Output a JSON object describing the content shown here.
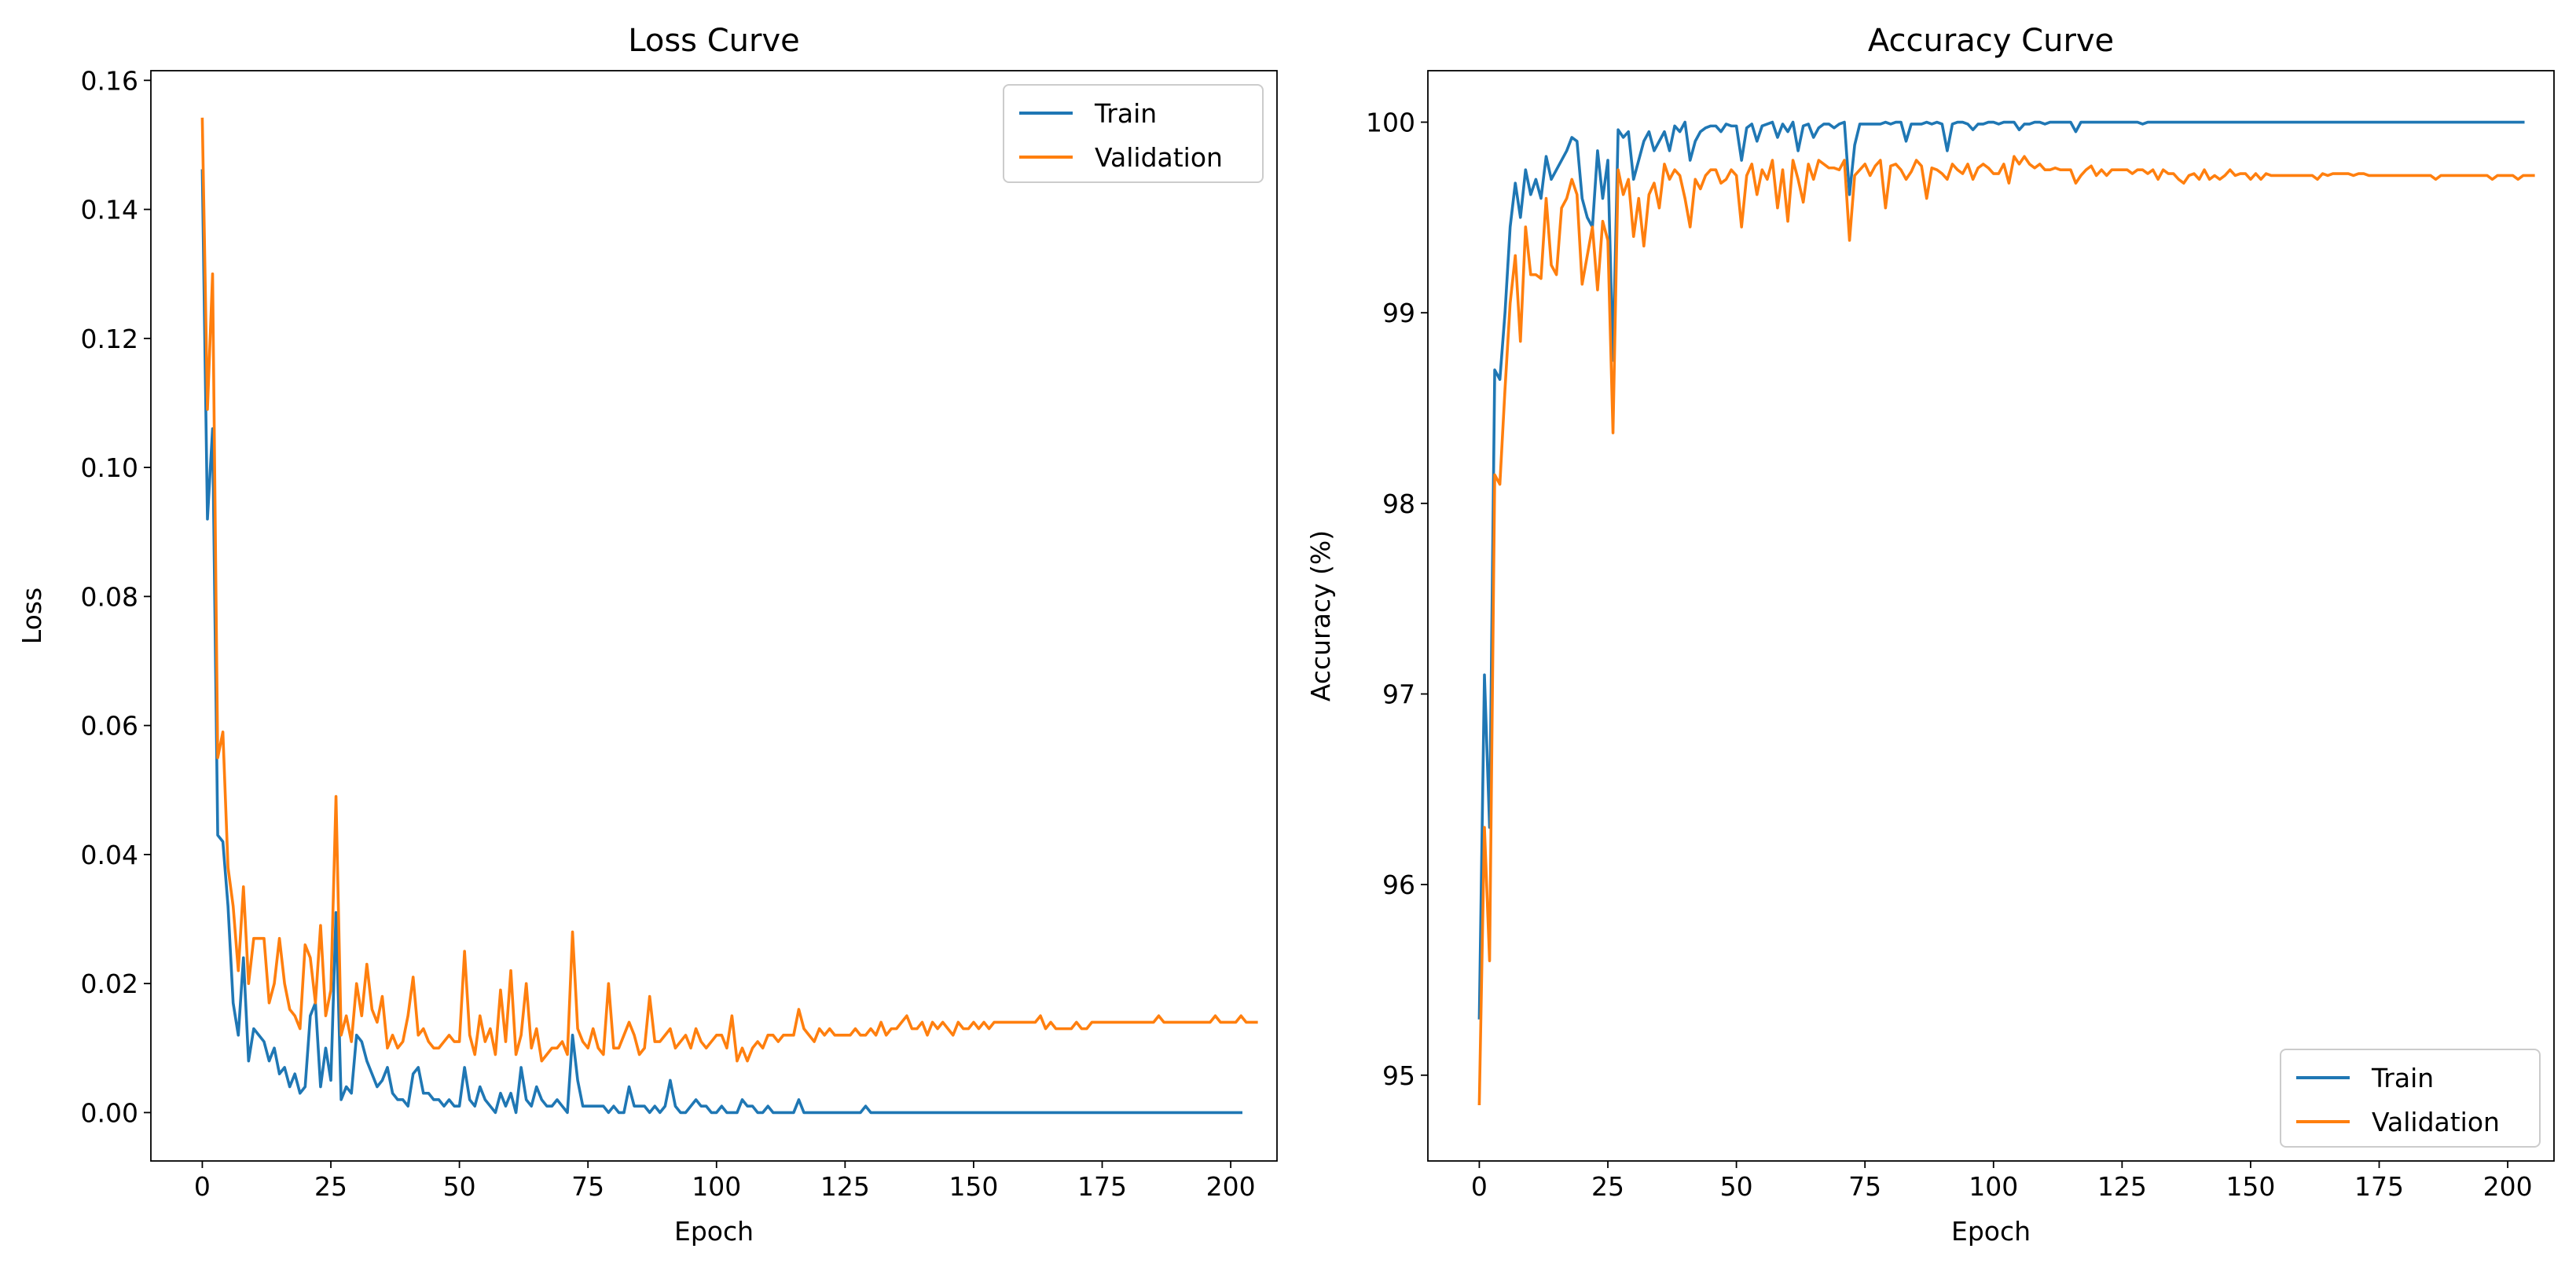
{
  "chart_data": [
    {
      "type": "line",
      "title": "Loss Curve",
      "xlabel": "Epoch",
      "ylabel": "Loss",
      "xlim": [
        -10,
        209
      ],
      "ylim": [
        -0.0075,
        0.1615
      ],
      "xticks": [
        0,
        25,
        50,
        75,
        100,
        125,
        150,
        175,
        200
      ],
      "yticks": [
        0.0,
        0.02,
        0.04,
        0.06,
        0.08,
        0.1,
        0.12,
        0.14,
        0.16
      ],
      "ytick_labels": [
        "0.00",
        "0.02",
        "0.04",
        "0.06",
        "0.08",
        "0.10",
        "0.12",
        "0.14",
        "0.16"
      ],
      "legend_position": "top-right",
      "series": [
        {
          "name": "Train",
          "color": "#1f77b4",
          "values": [
            0.146,
            0.092,
            0.106,
            0.043,
            0.042,
            0.032,
            0.017,
            0.012,
            0.024,
            0.008,
            0.013,
            0.012,
            0.011,
            0.008,
            0.01,
            0.006,
            0.007,
            0.004,
            0.006,
            0.003,
            0.004,
            0.015,
            0.017,
            0.004,
            0.01,
            0.005,
            0.031,
            0.002,
            0.004,
            0.003,
            0.012,
            0.011,
            0.008,
            0.006,
            0.004,
            0.005,
            0.007,
            0.003,
            0.002,
            0.002,
            0.001,
            0.006,
            0.007,
            0.003,
            0.003,
            0.002,
            0.002,
            0.001,
            0.002,
            0.001,
            0.001,
            0.007,
            0.002,
            0.001,
            0.004,
            0.002,
            0.001,
            0.0,
            0.003,
            0.001,
            0.003,
            0.0,
            0.007,
            0.002,
            0.001,
            0.004,
            0.002,
            0.001,
            0.001,
            0.002,
            0.001,
            0.0,
            0.012,
            0.005,
            0.001,
            0.001,
            0.001,
            0.001,
            0.001,
            0.0,
            0.001,
            0.0,
            0.0,
            0.004,
            0.001,
            0.001,
            0.001,
            0.0,
            0.001,
            0.0,
            0.001,
            0.005,
            0.001,
            0.0,
            0.0,
            0.001,
            0.002,
            0.001,
            0.001,
            0.0,
            0.0,
            0.001,
            0.0,
            0.0,
            0.0,
            0.002,
            0.001,
            0.001,
            0.0,
            0.0,
            0.001,
            0.0,
            0.0,
            0.0,
            0.0,
            0.0,
            0.002,
            0.0,
            0.0,
            0.0,
            0.0,
            0.0,
            0.0,
            0.0,
            0.0,
            0.0,
            0.0,
            0.0,
            0.0,
            0.001,
            0.0,
            0.0,
            0.0,
            0.0,
            0.0,
            0.0,
            0.0,
            0.0,
            0.0,
            0.0,
            0.0,
            0.0,
            0.0,
            0.0,
            0.0,
            0.0,
            0.0,
            0.0,
            0.0,
            0.0,
            0.0,
            0.0,
            0.0,
            0.0,
            0.0,
            0.0,
            0.0,
            0.0,
            0.0,
            0.0,
            0.0,
            0.0,
            0.0,
            0.0,
            0.0,
            0.0,
            0.0,
            0.0,
            0.0,
            0.0,
            0.0,
            0.0,
            0.0,
            0.0,
            0.0,
            0.0,
            0.0,
            0.0,
            0.0,
            0.0,
            0.0,
            0.0,
            0.0,
            0.0,
            0.0,
            0.0,
            0.0,
            0.0,
            0.0,
            0.0,
            0.0,
            0.0,
            0.0,
            0.0,
            0.0,
            0.0,
            0.0,
            0.0,
            0.0,
            0.0,
            0.0,
            0.0,
            0.0
          ]
        },
        {
          "name": "Validation",
          "color": "#ff7f0e",
          "values": [
            0.154,
            0.109,
            0.13,
            0.055,
            0.059,
            0.038,
            0.032,
            0.022,
            0.035,
            0.02,
            0.027,
            0.027,
            0.027,
            0.017,
            0.02,
            0.027,
            0.02,
            0.016,
            0.015,
            0.013,
            0.026,
            0.024,
            0.017,
            0.029,
            0.015,
            0.019,
            0.049,
            0.012,
            0.015,
            0.011,
            0.02,
            0.015,
            0.023,
            0.016,
            0.014,
            0.018,
            0.01,
            0.012,
            0.01,
            0.011,
            0.015,
            0.021,
            0.012,
            0.013,
            0.011,
            0.01,
            0.01,
            0.011,
            0.012,
            0.011,
            0.011,
            0.025,
            0.012,
            0.009,
            0.015,
            0.011,
            0.013,
            0.009,
            0.019,
            0.011,
            0.022,
            0.009,
            0.012,
            0.02,
            0.01,
            0.013,
            0.008,
            0.009,
            0.01,
            0.01,
            0.011,
            0.009,
            0.028,
            0.013,
            0.011,
            0.01,
            0.013,
            0.01,
            0.009,
            0.02,
            0.01,
            0.01,
            0.012,
            0.014,
            0.012,
            0.009,
            0.01,
            0.018,
            0.011,
            0.011,
            0.012,
            0.013,
            0.01,
            0.011,
            0.012,
            0.01,
            0.013,
            0.011,
            0.01,
            0.011,
            0.012,
            0.012,
            0.01,
            0.015,
            0.008,
            0.01,
            0.008,
            0.01,
            0.011,
            0.01,
            0.012,
            0.012,
            0.011,
            0.012,
            0.012,
            0.012,
            0.016,
            0.013,
            0.012,
            0.011,
            0.013,
            0.012,
            0.013,
            0.012,
            0.012,
            0.012,
            0.012,
            0.013,
            0.012,
            0.012,
            0.013,
            0.012,
            0.014,
            0.012,
            0.013,
            0.013,
            0.014,
            0.015,
            0.013,
            0.013,
            0.014,
            0.012,
            0.014,
            0.013,
            0.014,
            0.013,
            0.012,
            0.014,
            0.013,
            0.013,
            0.014,
            0.013,
            0.014,
            0.013,
            0.014,
            0.014,
            0.014,
            0.014,
            0.014,
            0.014,
            0.014,
            0.014,
            0.014,
            0.015,
            0.013,
            0.014,
            0.013,
            0.013,
            0.013,
            0.013,
            0.014,
            0.013,
            0.013,
            0.014,
            0.014,
            0.014,
            0.014,
            0.014,
            0.014,
            0.014,
            0.014,
            0.014,
            0.014,
            0.014,
            0.014,
            0.014,
            0.015,
            0.014,
            0.014,
            0.014,
            0.014,
            0.014,
            0.014,
            0.014,
            0.014,
            0.014,
            0.014,
            0.015,
            0.014,
            0.014,
            0.014,
            0.014,
            0.015,
            0.014,
            0.014,
            0.014
          ]
        }
      ]
    },
    {
      "type": "line",
      "title": "Accuracy Curve",
      "xlabel": "Epoch",
      "ylabel": "Accuracy (%)",
      "xlim": [
        -10,
        209
      ],
      "ylim": [
        94.55,
        100.27
      ],
      "xticks": [
        0,
        25,
        50,
        75,
        100,
        125,
        150,
        175,
        200
      ],
      "yticks": [
        95,
        96,
        97,
        98,
        99,
        100
      ],
      "ytick_labels": [
        "95",
        "96",
        "97",
        "98",
        "99",
        "100"
      ],
      "legend_position": "bottom-right",
      "series": [
        {
          "name": "Train",
          "color": "#1f77b4",
          "values": [
            95.3,
            97.1,
            96.3,
            98.7,
            98.65,
            99.0,
            99.45,
            99.68,
            99.5,
            99.75,
            99.62,
            99.7,
            99.6,
            99.82,
            99.7,
            99.75,
            99.8,
            99.85,
            99.92,
            99.9,
            99.6,
            99.5,
            99.45,
            99.85,
            99.6,
            99.8,
            98.75,
            99.96,
            99.92,
            99.95,
            99.7,
            99.8,
            99.9,
            99.95,
            99.85,
            99.9,
            99.95,
            99.85,
            99.98,
            99.95,
            100.0,
            99.8,
            99.9,
            99.95,
            99.97,
            99.98,
            99.98,
            99.95,
            99.99,
            99.98,
            99.98,
            99.8,
            99.97,
            99.99,
            99.9,
            99.98,
            99.99,
            100.0,
            99.92,
            99.99,
            99.95,
            100.0,
            99.85,
            99.98,
            99.99,
            99.92,
            99.97,
            99.99,
            99.99,
            99.97,
            99.99,
            100.0,
            99.62,
            99.88,
            99.99,
            99.99,
            99.99,
            99.99,
            99.99,
            100.0,
            99.99,
            100.0,
            100.0,
            99.9,
            99.99,
            99.99,
            99.99,
            100.0,
            99.99,
            100.0,
            99.99,
            99.85,
            99.99,
            100.0,
            100.0,
            99.99,
            99.96,
            99.99,
            99.99,
            100.0,
            100.0,
            99.99,
            100.0,
            100.0,
            100.0,
            99.96,
            99.99,
            99.99,
            100.0,
            100.0,
            99.99,
            100.0,
            100.0,
            100.0,
            100.0,
            100.0,
            99.95,
            100.0,
            100.0,
            100.0,
            100.0,
            100.0,
            100.0,
            100.0,
            100.0,
            100.0,
            100.0,
            100.0,
            100.0,
            99.99,
            100.0,
            100.0,
            100.0,
            100.0,
            100.0,
            100.0,
            100.0,
            100.0,
            100.0,
            100.0,
            100.0,
            100.0,
            100.0,
            100.0,
            100.0,
            100.0,
            100.0,
            100.0,
            100.0,
            100.0,
            100.0,
            100.0,
            100.0,
            100.0,
            100.0,
            100.0,
            100.0,
            100.0,
            100.0,
            100.0,
            100.0,
            100.0,
            100.0,
            100.0,
            100.0,
            100.0,
            100.0,
            100.0,
            100.0,
            100.0,
            100.0,
            100.0,
            100.0,
            100.0,
            100.0,
            100.0,
            100.0,
            100.0,
            100.0,
            100.0,
            100.0,
            100.0,
            100.0,
            100.0,
            100.0,
            100.0,
            100.0,
            100.0,
            100.0,
            100.0,
            100.0,
            100.0,
            100.0,
            100.0,
            100.0,
            100.0,
            100.0,
            100.0,
            100.0,
            100.0,
            100.0,
            100.0,
            100.0,
            100.0
          ]
        },
        {
          "name": "Validation",
          "color": "#ff7f0e",
          "values": [
            94.85,
            96.3,
            95.6,
            98.15,
            98.1,
            98.6,
            99.05,
            99.3,
            98.85,
            99.45,
            99.2,
            99.2,
            99.18,
            99.6,
            99.25,
            99.2,
            99.55,
            99.6,
            99.7,
            99.62,
            99.15,
            99.3,
            99.45,
            99.12,
            99.48,
            99.38,
            98.37,
            99.75,
            99.62,
            99.7,
            99.4,
            99.6,
            99.35,
            99.62,
            99.68,
            99.55,
            99.78,
            99.7,
            99.75,
            99.72,
            99.6,
            99.45,
            99.7,
            99.65,
            99.72,
            99.75,
            99.75,
            99.68,
            99.7,
            99.75,
            99.72,
            99.45,
            99.72,
            99.78,
            99.62,
            99.75,
            99.7,
            99.8,
            99.55,
            99.75,
            99.48,
            99.8,
            99.7,
            99.58,
            99.78,
            99.7,
            99.8,
            99.78,
            99.76,
            99.76,
            99.75,
            99.8,
            99.38,
            99.72,
            99.75,
            99.78,
            99.72,
            99.77,
            99.8,
            99.55,
            99.77,
            99.78,
            99.75,
            99.7,
            99.74,
            99.8,
            99.77,
            99.6,
            99.76,
            99.75,
            99.73,
            99.7,
            99.78,
            99.75,
            99.73,
            99.78,
            99.7,
            99.76,
            99.78,
            99.76,
            99.73,
            99.73,
            99.78,
            99.68,
            99.82,
            99.78,
            99.82,
            99.78,
            99.76,
            99.78,
            99.75,
            99.75,
            99.76,
            99.75,
            99.75,
            99.75,
            99.68,
            99.72,
            99.75,
            99.77,
            99.72,
            99.75,
            99.72,
            99.75,
            99.75,
            99.75,
            99.75,
            99.73,
            99.75,
            99.75,
            99.73,
            99.75,
            99.7,
            99.75,
            99.73,
            99.73,
            99.7,
            99.68,
            99.72,
            99.73,
            99.7,
            99.75,
            99.7,
            99.72,
            99.7,
            99.72,
            99.75,
            99.72,
            99.73,
            99.73,
            99.7,
            99.73,
            99.7,
            99.73,
            99.72,
            99.72,
            99.72,
            99.72,
            99.72,
            99.72,
            99.72,
            99.72,
            99.72,
            99.7,
            99.73,
            99.72,
            99.73,
            99.73,
            99.73,
            99.73,
            99.72,
            99.73,
            99.73,
            99.72,
            99.72,
            99.72,
            99.72,
            99.72,
            99.72,
            99.72,
            99.72,
            99.72,
            99.72,
            99.72,
            99.72,
            99.72,
            99.7,
            99.72,
            99.72,
            99.72,
            99.72,
            99.72,
            99.72,
            99.72,
            99.72,
            99.72,
            99.72,
            99.7,
            99.72,
            99.72,
            99.72,
            99.72,
            99.7,
            99.72,
            99.72,
            99.72
          ]
        }
      ]
    }
  ]
}
